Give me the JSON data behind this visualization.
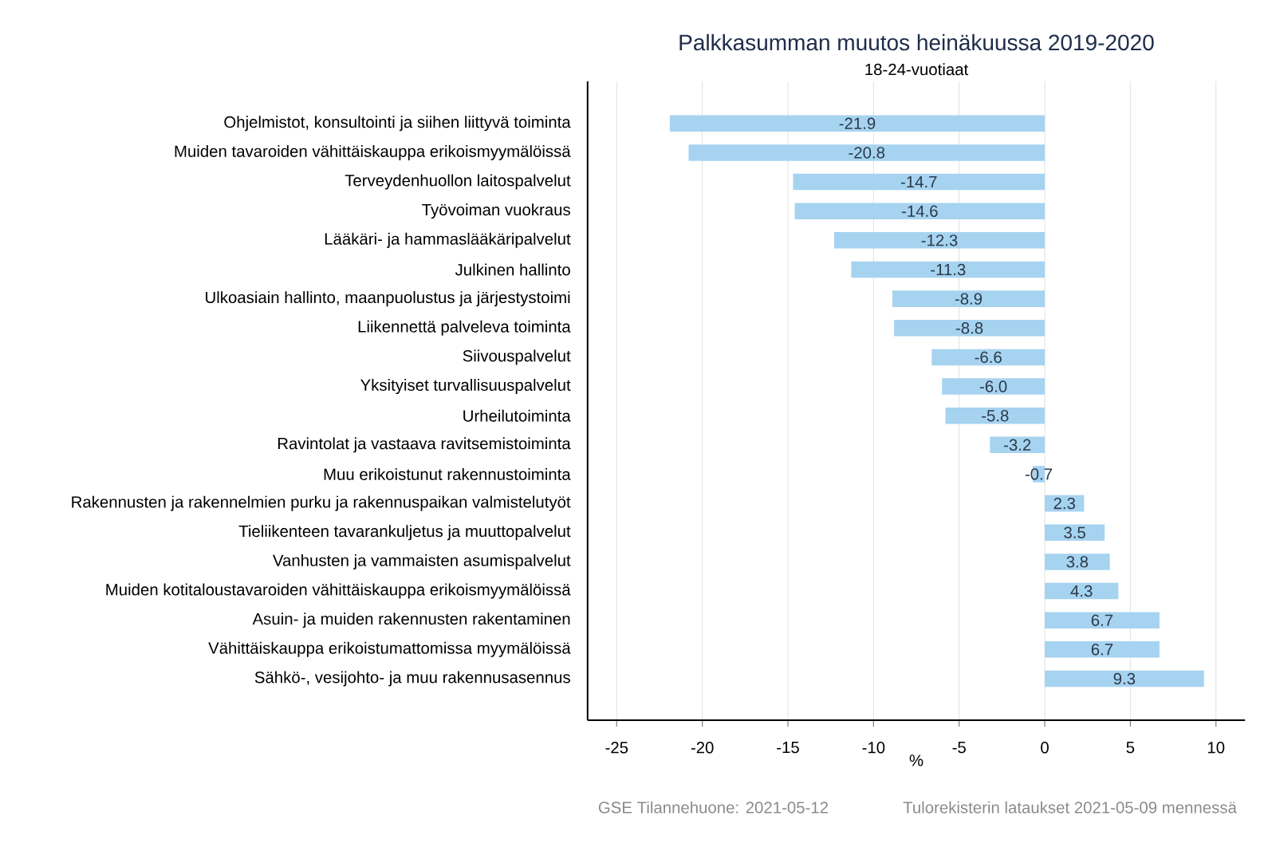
{
  "chart_data": {
    "type": "bar",
    "orientation": "horizontal",
    "title": "Palkkasumman muutos heinäkuussa 2019-2020",
    "subtitle": "18-24-vuotiaat",
    "xlabel": "%",
    "categories": [
      "Ohjelmistot, konsultointi ja siihen liittyvä toiminta",
      "Muiden tavaroiden vähittäiskauppa erikoismyymälöissä",
      "Terveydenhuollon laitospalvelut",
      "Työvoiman vuokraus",
      "Lääkäri- ja hammaslääkäripalvelut",
      "Julkinen hallinto",
      "Ulkoasiain hallinto, maanpuolustus ja järjestystoimi",
      "Liikennettä palveleva toiminta",
      "Siivouspalvelut",
      "Yksityiset turvallisuuspalvelut",
      "Urheilutoiminta",
      "Ravintolat ja vastaava ravitsemistoiminta",
      "Muu erikoistunut rakennustoiminta",
      "Rakennusten ja rakennelmien purku ja rakennuspaikan valmistelutyöt",
      "Tieliikenteen tavarankuljetus ja muuttopalvelut",
      "Vanhusten ja vammaisten asumispalvelut",
      "Muiden kotitaloustavaroiden vähittäiskauppa erikoismyymälöissä",
      "Asuin- ja muiden rakennusten rakentaminen",
      "Vähittäiskauppa erikoistumattomissa myymälöissä",
      "Sähkö-, vesijohto- ja muu rakennusasennus"
    ],
    "values": [
      -21.9,
      -20.8,
      -14.7,
      -14.6,
      -12.3,
      -11.3,
      -8.9,
      -8.8,
      -6.6,
      -6.0,
      -5.8,
      -3.2,
      -0.7,
      2.3,
      3.5,
      3.8,
      4.3,
      6.7,
      6.7,
      9.3
    ],
    "value_labels": [
      "-21.9",
      "-20.8",
      "-14.7",
      "-14.6",
      "-12.3",
      "-11.3",
      "-8.9",
      "-8.8",
      "-6.6",
      "-6.0",
      "-5.8",
      "-3.2",
      "-0.7",
      "2.3",
      "3.5",
      "3.8",
      "4.3",
      "6.7",
      "6.7",
      "9.3"
    ],
    "color": "#a6d3f0",
    "xlim": [
      -26.7,
      11.7
    ],
    "xticks": [
      -25,
      -20,
      -15,
      -10,
      -5,
      0,
      5,
      10
    ],
    "grid": "x",
    "annotations": [
      "GSE Tilannehuone: 2021-05-12",
      "Tulorekisterin lataukset 2021-05-09 mennessä"
    ]
  }
}
